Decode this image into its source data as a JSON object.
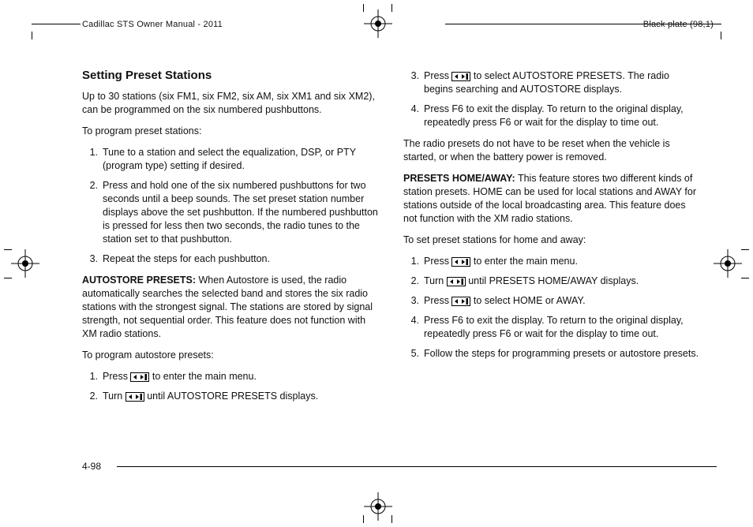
{
  "header": {
    "left": "Cadillac STS Owner Manual - 2011",
    "right": "Black plate (98,1)"
  },
  "left_col": {
    "heading": "Setting Preset Stations",
    "intro": "Up to 30 stations (six FM1, six FM2, six AM, six XM1 and six XM2), can be programmed on the six numbered pushbuttons.",
    "to_program_label": "To program preset stations:",
    "steps": [
      "Tune to a station and select the equalization, DSP, or PTY (program type) setting if desired.",
      "Press and hold one of the six numbered pushbuttons for two seconds until a beep sounds. The set preset station number displays above the set pushbutton. If the numbered pushbutton is pressed for less then two seconds, the radio tunes to the station set to that pushbutton.",
      "Repeat the steps for each pushbutton."
    ],
    "autostore_label": "AUTOSTORE PRESETS:",
    "autostore_text": " When Autostore is used, the radio automatically searches the selected band and stores the six radio stations with the strongest signal. The stations are stored by signal strength, not sequential order. This feature does not function with XM radio stations.",
    "to_program_auto_label": "To program autostore presets:",
    "auto_steps_preicon": [
      "Press ",
      "Turn "
    ],
    "auto_steps_posticon": [
      " to enter the main menu.",
      " until AUTOSTORE PRESETS displays."
    ]
  },
  "right_col": {
    "steps_cont_preicon": [
      "Press "
    ],
    "steps_cont_posticon": [
      " to select AUTOSTORE PRESETS. The radio begins searching and AUTOSTORE displays."
    ],
    "steps_cont_rest": [
      "Press F6 to exit the display. To return to the original display, repeatedly press F6 or wait for the display to time out."
    ],
    "steps_cont_start": 3,
    "note": "The radio presets do not have to be reset when the vehicle is started, or when the battery power is removed.",
    "presets_ha_label": "PRESETS HOME/AWAY:",
    "presets_ha_text": " This feature stores two different kinds of station presets. HOME can be used for local stations and AWAY for stations outside of the local broadcasting area. This feature does not function with the XM radio stations.",
    "to_set_label": "To set preset stations for home and away:",
    "ha_steps_preicon": [
      "Press ",
      "Turn ",
      "Press "
    ],
    "ha_steps_posticon": [
      " to enter the main menu.",
      " until PRESETS HOME/AWAY displays.",
      " to select HOME or AWAY."
    ],
    "ha_steps_rest": [
      "Press F6 to exit the display. To return to the original display, repeatedly press F6 or wait for the display to time out.",
      "Follow the steps for programming presets or autostore presets."
    ]
  },
  "pagenum": "4-98",
  "icons": {
    "tune": "tune-knob-icon"
  }
}
